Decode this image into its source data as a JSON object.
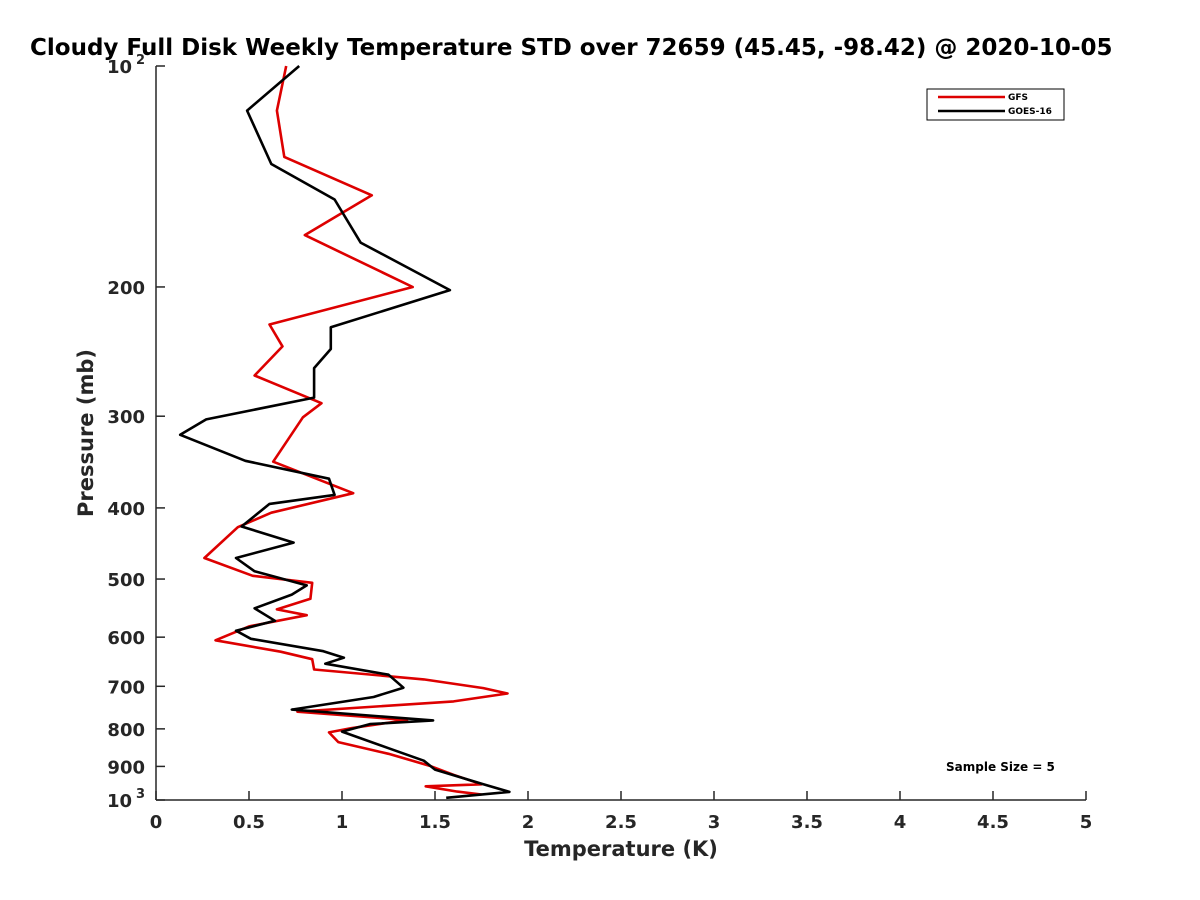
{
  "chart_data": {
    "type": "line",
    "title": "Cloudy Full Disk Weekly Temperature STD over 72659 (45.45, -98.42) @ 2020-10-05",
    "xlabel": "Temperature (K)",
    "ylabel": "Pressure (mb)",
    "xlim": [
      0,
      5
    ],
    "ylim": [
      1000,
      100
    ],
    "y_scale": "log",
    "y_reversed": true,
    "grid": false,
    "legend_position": "top-right",
    "x_ticks": [
      "0",
      "0.5",
      "1",
      "1.5",
      "2",
      "2.5",
      "3",
      "3.5",
      "4",
      "4.5",
      "5"
    ],
    "y_ticks": [
      {
        "value": 100,
        "base": "10",
        "exp": "2"
      },
      {
        "value": 200,
        "label": "200"
      },
      {
        "value": 300,
        "label": "300"
      },
      {
        "value": 400,
        "label": "400"
      },
      {
        "value": 500,
        "label": "500"
      },
      {
        "value": 600,
        "label": "600"
      },
      {
        "value": 700,
        "label": "700"
      },
      {
        "value": 800,
        "label": "800"
      },
      {
        "value": 900,
        "label": "900"
      },
      {
        "value": 1000,
        "base": "10",
        "exp": "3"
      }
    ],
    "annotation": "Sample Size = 5",
    "series": [
      {
        "name": "GFS",
        "color": "#dd0000",
        "points": [
          [
            0.7,
            100
          ],
          [
            0.65,
            115
          ],
          [
            0.69,
            133
          ],
          [
            1.16,
            150
          ],
          [
            0.8,
            170
          ],
          [
            1.38,
            200
          ],
          [
            0.61,
            225
          ],
          [
            0.68,
            241
          ],
          [
            0.53,
            264
          ],
          [
            0.89,
            288
          ],
          [
            0.79,
            301
          ],
          [
            0.63,
            346
          ],
          [
            1.06,
            382
          ],
          [
            0.62,
            406
          ],
          [
            0.44,
            425
          ],
          [
            0.26,
            468
          ],
          [
            0.52,
            495
          ],
          [
            0.84,
            506
          ],
          [
            0.83,
            532
          ],
          [
            0.65,
            550
          ],
          [
            0.81,
            560
          ],
          [
            0.5,
            580
          ],
          [
            0.32,
            606
          ],
          [
            0.67,
            628
          ],
          [
            0.84,
            643
          ],
          [
            0.85,
            664
          ],
          [
            1.44,
            685
          ],
          [
            1.76,
            704
          ],
          [
            1.89,
            716
          ],
          [
            1.6,
            734
          ],
          [
            0.76,
            758
          ],
          [
            1.35,
            778
          ],
          [
            1.05,
            798
          ],
          [
            0.93,
            809
          ],
          [
            0.98,
            834
          ],
          [
            1.25,
            865
          ],
          [
            1.47,
            898
          ],
          [
            1.6,
            924
          ],
          [
            1.75,
            952
          ],
          [
            1.45,
            958
          ],
          [
            1.62,
            974
          ],
          [
            1.75,
            983
          ]
        ]
      },
      {
        "name": "GOES-16",
        "color": "#000000",
        "points": [
          [
            0.77,
            100
          ],
          [
            0.49,
            115
          ],
          [
            0.62,
            136
          ],
          [
            0.96,
            152
          ],
          [
            1.1,
            174
          ],
          [
            1.58,
            202
          ],
          [
            0.94,
            227
          ],
          [
            0.94,
            243
          ],
          [
            0.85,
            258
          ],
          [
            0.85,
            283
          ],
          [
            0.27,
            303
          ],
          [
            0.13,
            318
          ],
          [
            0.48,
            345
          ],
          [
            0.93,
            365
          ],
          [
            0.96,
            384
          ],
          [
            0.61,
            395
          ],
          [
            0.46,
            424
          ],
          [
            0.74,
            446
          ],
          [
            0.43,
            468
          ],
          [
            0.53,
            488
          ],
          [
            0.81,
            510
          ],
          [
            0.73,
            525
          ],
          [
            0.53,
            548
          ],
          [
            0.64,
            570
          ],
          [
            0.43,
            588
          ],
          [
            0.51,
            603
          ],
          [
            0.9,
            627
          ],
          [
            1.01,
            640
          ],
          [
            0.91,
            652
          ],
          [
            1.25,
            675
          ],
          [
            1.33,
            703
          ],
          [
            1.17,
            724
          ],
          [
            0.73,
            753
          ],
          [
            1.49,
            779
          ],
          [
            1.15,
            788
          ],
          [
            1.0,
            807
          ],
          [
            1.25,
            850
          ],
          [
            1.44,
            884
          ],
          [
            1.5,
            909
          ],
          [
            1.76,
            952
          ],
          [
            1.9,
            975
          ],
          [
            1.56,
            993
          ]
        ]
      }
    ]
  }
}
